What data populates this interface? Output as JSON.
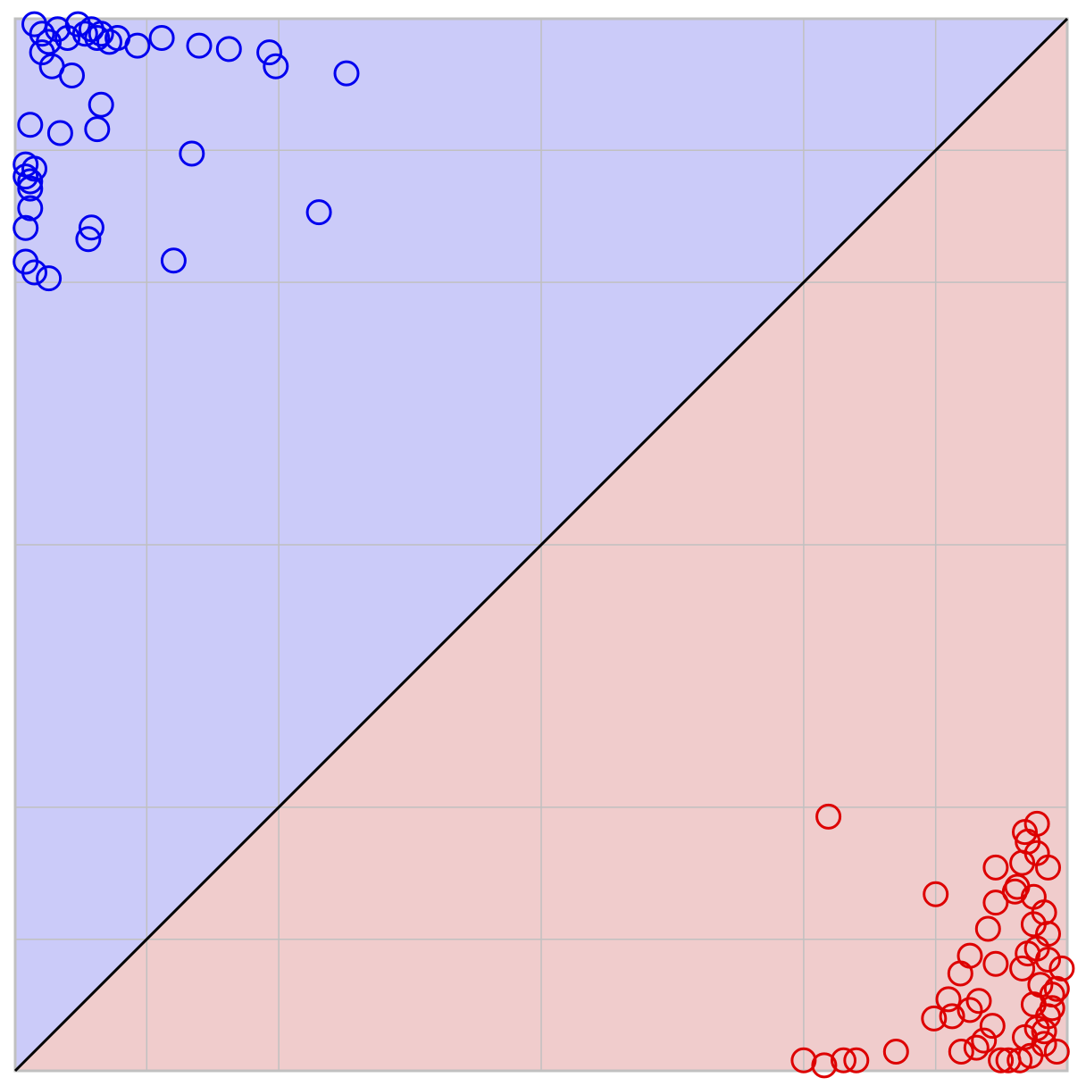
{
  "colors": {
    "region_upper": "#cbcbf9",
    "region_lower": "#f0cccc",
    "series_upper": "#0000ee",
    "series_lower": "#dd0000",
    "diagonal": "#000000",
    "grid": "#c0c0c0"
  },
  "chart_data": {
    "type": "scatter",
    "scale": "logit",
    "xlim": [
      0.0001,
      0.9999
    ],
    "ylim": [
      0.0001,
      0.9999
    ],
    "grid": true,
    "grid_values": [
      0.001,
      0.01,
      0.5,
      0.99,
      0.999
    ],
    "diagonal": "y = x",
    "marker": "open-circle",
    "series": [
      {
        "color": "#0000ee",
        "points": [
          [
            0.00014,
            0.99989
          ],
          [
            0.00016,
            0.99987
          ],
          [
            0.00018,
            0.99985
          ],
          [
            0.00021,
            0.99988
          ],
          [
            0.00025,
            0.99986
          ],
          [
            0.0003,
            0.99989
          ],
          [
            0.00034,
            0.99987
          ],
          [
            0.00038,
            0.99988
          ],
          [
            0.00042,
            0.99986
          ],
          [
            0.00045,
            0.99987
          ],
          [
            0.00052,
            0.99985
          ],
          [
            0.0006,
            0.99986
          ],
          [
            0.00085,
            0.99984
          ],
          [
            0.0013,
            0.99986
          ],
          [
            0.0025,
            0.99984
          ],
          [
            0.0042,
            0.99983
          ],
          [
            0.0085,
            0.99982
          ],
          [
            0.0095,
            0.99977
          ],
          [
            0.032,
            0.99974
          ],
          [
            0.00016,
            0.99982
          ],
          [
            0.00019,
            0.99977
          ],
          [
            0.00027,
            0.99973
          ],
          [
            0.00045,
            0.99955
          ],
          [
            0.00013,
            0.99936
          ],
          [
            0.00022,
            0.99926
          ],
          [
            0.00042,
            0.99931
          ],
          [
            0.0022,
            0.99894
          ],
          [
            0.00012,
            0.99872
          ],
          [
            0.00014,
            0.99862
          ],
          [
            0.00012,
            0.99842
          ],
          [
            0.00013,
            0.99828
          ],
          [
            0.00013,
            0.99805
          ],
          [
            0.00013,
            0.99725
          ],
          [
            0.00012,
            0.99612
          ],
          [
            0.00038,
            0.99615
          ],
          [
            0.00036,
            0.99528
          ],
          [
            0.02,
            0.99705
          ],
          [
            0.00012,
            0.99302
          ],
          [
            0.00014,
            0.99158
          ],
          [
            0.00018,
            0.99068
          ],
          [
            0.0016,
            0.99315
          ]
        ]
      },
      {
        "color": "#dd0000",
        "points": [
          [
            0.99935,
            0.00055
          ],
          [
            0.99953,
            0.00034
          ],
          [
            0.99945,
            0.00029
          ],
          [
            0.99925,
            0.00026
          ],
          [
            0.99897,
            0.00025
          ],
          [
            0.99963,
            0.00022
          ],
          [
            0.99957,
            0.00017
          ],
          [
            0.99951,
            0.00015
          ],
          [
            0.99936,
            0.00014
          ],
          [
            0.99988,
            0.00014
          ],
          [
            0.99981,
            0.00013
          ],
          [
            0.99977,
            0.00012
          ],
          [
            0.99972,
            0.00012
          ],
          [
            0.99968,
            0.00012
          ],
          [
            0.99985,
            0.00016
          ],
          [
            0.99979,
            0.00018
          ],
          [
            0.99983,
            0.00021
          ],
          [
            0.99986,
            0.00026
          ],
          [
            0.99982,
            0.00032
          ],
          [
            0.99987,
            0.00038
          ],
          [
            0.99984,
            0.00045
          ],
          [
            0.99978,
            0.0006
          ],
          [
            0.99986,
            0.0007
          ],
          [
            0.9998,
            0.00078
          ],
          [
            0.99983,
            0.00085
          ],
          [
            0.99986,
            0.0011
          ],
          [
            0.99982,
            0.0013
          ],
          [
            0.99985,
            0.0016
          ],
          [
            0.99982,
            0.0021
          ],
          [
            0.99976,
            0.0025
          ],
          [
            0.99986,
            0.0035
          ],
          [
            0.99983,
            0.0045
          ],
          [
            0.99978,
            0.0038
          ],
          [
            0.99975,
            0.0023
          ],
          [
            0.99965,
            0.0035
          ],
          [
            0.9998,
            0.0055
          ],
          [
            0.99989,
            0.0006
          ],
          [
            0.99987,
            0.0003
          ],
          [
            0.99985,
            0.0002
          ],
          [
            0.99988,
            0.00042
          ],
          [
            0.99983,
            0.0075
          ],
          [
            0.99979,
            0.0065
          ],
          [
            0.9996,
            0.0012
          ],
          [
            0.999,
            0.0022
          ],
          [
            0.99965,
            0.00065
          ],
          [
            0.99945,
            0.00075
          ],
          [
            0.99965,
            0.0019
          ],
          [
            0.9992,
            0.00035
          ],
          [
            0.99,
            0.00012
          ],
          [
            0.993,
            0.00011
          ],
          [
            0.995,
            0.00012
          ],
          [
            0.996,
            0.00012
          ],
          [
            0.998,
            0.00014
          ],
          [
            0.9935,
            0.0085
          ]
        ]
      }
    ]
  }
}
